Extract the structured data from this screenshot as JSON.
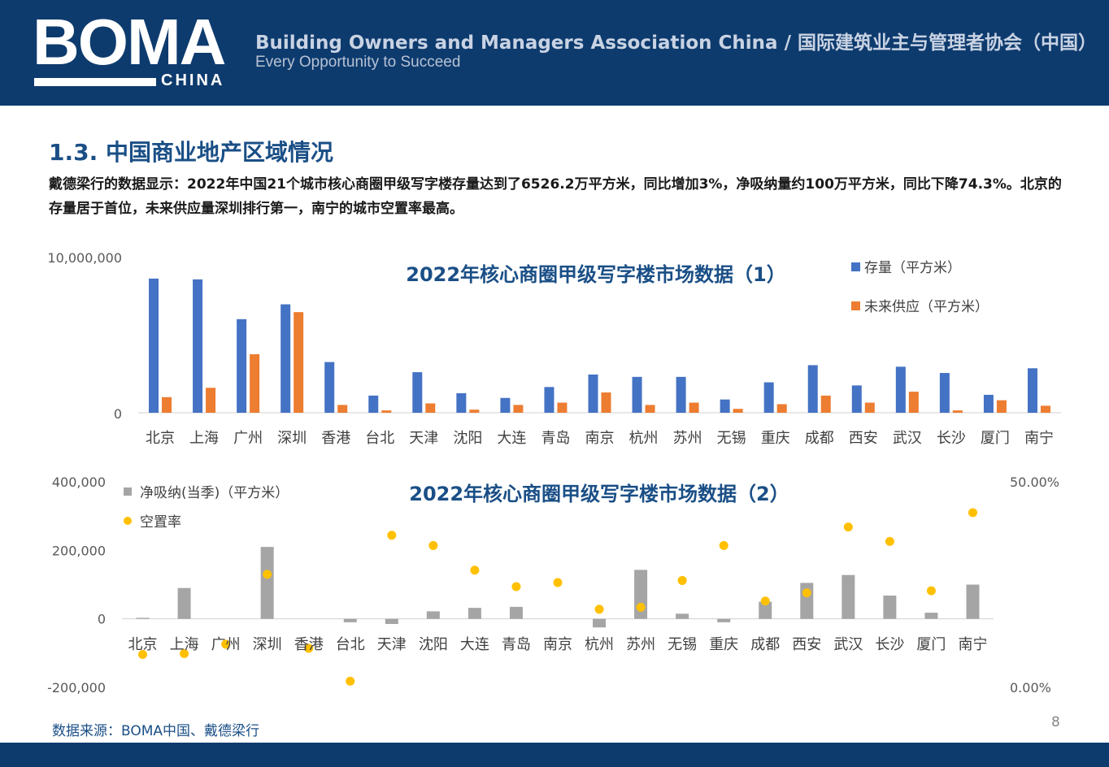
{
  "header": {
    "logo": "BOMA",
    "logo_sub": "CHINA",
    "org_name": "Building Owners and Managers Association China / 国际建筑业主与管理者协会（中国）",
    "tagline": "Every Opportunity to Succeed"
  },
  "page": {
    "title": "1.3. 中国商业地产区域情况",
    "summary": "戴德梁行的数据显示：2022年中国21个城市核心商圈甲级写字楼存量达到了6526.2万平方米，同比增加3%，净吸纳量约100万平方米，同比下降74.3%。北京的存量居于首位，未来供应量深圳排行第一，南宁的城市空置率最高。",
    "source": "数据来源：BOMA中国、戴德梁行",
    "page_number": "8"
  },
  "colors": {
    "header_bg": "#0e3b6e",
    "stock": "#4472c4",
    "supply": "#ed7d31",
    "absorption": "#a5a5a5",
    "vacancy": "#ffc000",
    "title": "#1a4f86"
  },
  "chart_data": [
    {
      "type": "bar",
      "title": "2022年核心商圈甲级写字楼市场数据（1）",
      "categories": [
        "北京",
        "上海",
        "广州",
        "深圳",
        "香港",
        "台北",
        "天津",
        "沈阳",
        "大连",
        "青岛",
        "南京",
        "杭州",
        "苏州",
        "无锡",
        "重庆",
        "成都",
        "西安",
        "武汉",
        "长沙",
        "厦门",
        "南宁"
      ],
      "series": [
        {
          "name": "存量（平方米）",
          "values": [
            8600000,
            8550000,
            6000000,
            6950000,
            3250000,
            1100000,
            2600000,
            1250000,
            950000,
            1650000,
            2450000,
            2300000,
            2300000,
            850000,
            1950000,
            3050000,
            1750000,
            2950000,
            2550000,
            1150000,
            2850000
          ]
        },
        {
          "name": "未来供应（平方米）",
          "values": [
            1000000,
            1600000,
            3750000,
            6450000,
            500000,
            150000,
            600000,
            200000,
            500000,
            650000,
            1300000,
            500000,
            650000,
            250000,
            550000,
            1100000,
            650000,
            1350000,
            150000,
            800000,
            450000
          ]
        }
      ],
      "ylim": [
        0,
        10000000
      ],
      "yticks": [
        "10,000,000",
        "0"
      ],
      "legend": "top-right",
      "grid": false
    },
    {
      "type": "bar",
      "title": "2022年核心商圈甲级写字楼市场数据（2）",
      "categories": [
        "北京",
        "上海",
        "广州",
        "深圳",
        "香港",
        "台北",
        "天津",
        "沈阳",
        "大连",
        "青岛",
        "南京",
        "杭州",
        "苏州",
        "无锡",
        "重庆",
        "成都",
        "西安",
        "武汉",
        "长沙",
        "厦门",
        "南宁"
      ],
      "series": [
        {
          "name": "净吸纳(当季)（平方米）",
          "values": [
            3000,
            90000,
            0,
            210000,
            0,
            -10000,
            -15000,
            22000,
            32000,
            35000,
            0,
            -25000,
            143000,
            15000,
            -10000,
            50000,
            105000,
            128000,
            68000,
            18000,
            100000
          ]
        },
        {
          "name": "空置率",
          "values": [
            8.0,
            8.2,
            10.5,
            27.5,
            9.5,
            1.5,
            37.0,
            34.5,
            28.5,
            24.5,
            25.5,
            19.0,
            19.5,
            26.0,
            34.5,
            21.0,
            23.0,
            39.0,
            35.5,
            23.5,
            42.5
          ],
          "axis": "secondary",
          "style": "scatter"
        }
      ],
      "ylim": [
        -200000,
        400000
      ],
      "yticks": [
        "400,000",
        "200,000",
        "0",
        "-200,000"
      ],
      "y2lim": [
        0,
        50
      ],
      "y2ticks": [
        "50.00%",
        "0.00%"
      ],
      "legend": "top-left",
      "grid": false
    }
  ]
}
